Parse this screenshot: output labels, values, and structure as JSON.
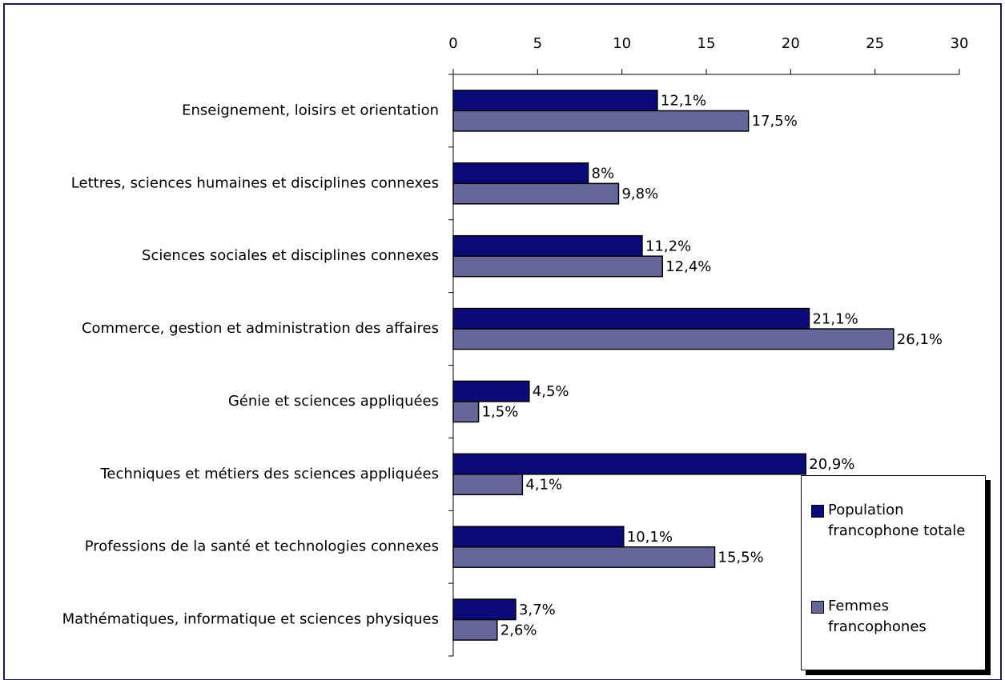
{
  "chart_data": {
    "type": "bar",
    "orientation": "horizontal",
    "categories": [
      "Enseignement, loisirs et orientation",
      "Lettres, sciences humaines et disciplines connexes",
      "Sciences sociales et disciplines connexes",
      "Commerce, gestion et administration des affaires",
      "Génie et sciences appliquées",
      "Techniques et métiers des sciences appliquées",
      "Professions de la santé et technologies connexes",
      "Mathématiques, informatique et sciences physiques"
    ],
    "series": [
      {
        "name": "Population francophone totale",
        "color": "#0a0a78",
        "values": [
          12.1,
          8,
          11.2,
          21.1,
          4.5,
          20.9,
          10.1,
          3.7
        ],
        "value_labels": [
          "12,1%",
          "8%",
          "11,2%",
          "21,1%",
          "4,5%",
          "20,9%",
          "10,1%",
          "3,7%"
        ]
      },
      {
        "name": "Femmes francophones",
        "color": "#66669a",
        "values": [
          17.5,
          9.8,
          12.4,
          26.1,
          1.5,
          4.1,
          15.5,
          2.6
        ],
        "value_labels": [
          "17,5%",
          "9,8%",
          "12,4%",
          "26,1%",
          "1,5%",
          "4,1%",
          "15,5%",
          "2,6%"
        ]
      }
    ],
    "xlim": [
      0,
      30
    ],
    "xticks": [
      0,
      5,
      10,
      15,
      20,
      25,
      30
    ],
    "legend": "lower right"
  }
}
